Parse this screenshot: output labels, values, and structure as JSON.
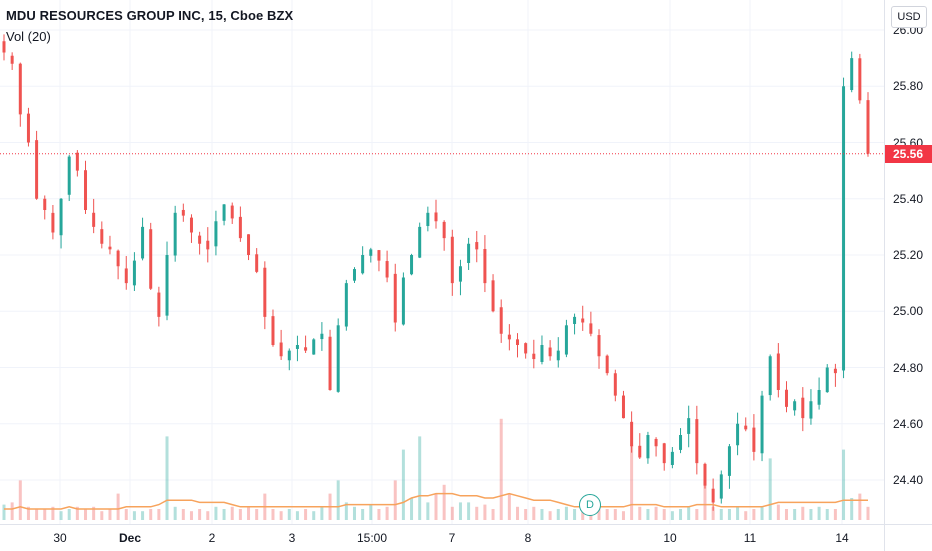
{
  "header": {
    "symbol_title": "MDU RESOURCES GROUP INC, 15, Cboe BZX",
    "volume_indicator": "Vol (20)"
  },
  "price_axis": {
    "currency": "USD",
    "ticks": [
      "26.00",
      "25.80",
      "25.60",
      "25.40",
      "25.20",
      "25.00",
      "24.80",
      "24.60",
      "24.40"
    ],
    "last_price_label": "25.56"
  },
  "time_axis": {
    "ticks": [
      "30",
      "Dec",
      "2",
      "3",
      "15:00",
      "7",
      "8",
      "10",
      "11",
      "14"
    ]
  },
  "events": {
    "dividend_label": "D"
  },
  "colors": {
    "up": "#26a69a",
    "down": "#ef5350",
    "volume_ma": "#f7a35c",
    "last_price_line": "#f23645",
    "grid": "#f0f3fa"
  },
  "chart_data": {
    "type": "candlestick",
    "title": "MDU RESOURCES GROUP INC, 15, Cboe BZX",
    "interval": "15",
    "ylim": [
      24.2,
      26.03
    ],
    "last_price": 25.56,
    "x_labels": [
      "30",
      "Dec",
      "2",
      "3",
      "15:00",
      "7",
      "8",
      "10",
      "11",
      "14"
    ],
    "close_path": [
      25.92,
      25.88,
      25.7,
      25.6,
      25.4,
      25.36,
      25.28,
      25.4,
      25.55,
      25.5,
      25.36,
      25.3,
      25.24,
      25.22,
      25.16,
      25.1,
      25.18,
      25.3,
      25.08,
      24.98,
      25.2,
      25.35,
      25.34,
      25.28,
      25.24,
      25.22,
      25.32,
      25.38,
      25.33,
      25.26,
      25.2,
      25.14,
      24.98,
      24.88,
      24.84,
      24.86,
      24.88,
      24.86,
      24.9,
      24.92,
      24.72,
      24.95,
      25.1,
      25.15,
      25.2,
      25.22,
      25.18,
      25.12,
      24.96,
      25.12,
      25.2,
      25.3,
      25.35,
      25.32,
      25.26,
      25.1,
      25.16,
      25.24,
      25.22,
      25.1,
      25.0,
      24.92,
      24.9,
      24.88,
      24.85,
      24.83,
      24.88,
      24.84,
      24.86,
      24.95,
      24.98,
      24.96,
      24.92,
      24.84,
      24.78,
      24.7,
      24.62,
      24.52,
      24.48,
      24.56,
      24.52,
      24.46,
      24.5,
      24.56,
      24.62,
      24.46,
      24.38,
      24.32,
      24.42,
      24.52,
      24.6,
      24.58,
      24.5,
      24.7,
      24.84,
      24.72,
      24.66,
      24.68,
      24.62,
      24.68,
      24.72,
      24.8,
      24.78,
      25.8,
      25.9,
      25.75,
      25.56
    ],
    "volume_path": [
      0.07,
      0.08,
      0.18,
      0.06,
      0.05,
      0.05,
      0.06,
      0.04,
      0.05,
      0.06,
      0.05,
      0.06,
      0.04,
      0.05,
      0.12,
      0.05,
      0.04,
      0.04,
      0.05,
      0.05,
      0.38,
      0.06,
      0.05,
      0.04,
      0.05,
      0.04,
      0.06,
      0.05,
      0.06,
      0.05,
      0.06,
      0.05,
      0.12,
      0.05,
      0.04,
      0.05,
      0.04,
      0.05,
      0.04,
      0.06,
      0.12,
      0.18,
      0.08,
      0.06,
      0.05,
      0.07,
      0.05,
      0.06,
      0.18,
      0.32,
      0.1,
      0.38,
      0.08,
      0.12,
      0.16,
      0.06,
      0.08,
      0.08,
      0.06,
      0.07,
      0.05,
      0.46,
      0.12,
      0.06,
      0.05,
      0.06,
      0.05,
      0.04,
      0.05,
      0.06,
      0.05,
      0.04,
      0.05,
      0.06,
      0.05,
      0.05,
      0.04,
      0.34,
      0.06,
      0.05,
      0.06,
      0.05,
      0.04,
      0.05,
      0.06,
      0.05,
      0.18,
      0.06,
      0.05,
      0.05,
      0.06,
      0.04,
      0.05,
      0.06,
      0.28,
      0.07,
      0.05,
      0.05,
      0.06,
      0.05,
      0.06,
      0.05,
      0.05,
      0.32,
      0.1,
      0.12,
      0.06
    ],
    "volume_ma": [
      0.05,
      0.05,
      0.06,
      0.05,
      0.05,
      0.05,
      0.05,
      0.05,
      0.06,
      0.05,
      0.05,
      0.05,
      0.05,
      0.05,
      0.05,
      0.06,
      0.06,
      0.06,
      0.06,
      0.07,
      0.09,
      0.09,
      0.09,
      0.09,
      0.08,
      0.08,
      0.08,
      0.08,
      0.07,
      0.06,
      0.06,
      0.06,
      0.06,
      0.06,
      0.06,
      0.06,
      0.06,
      0.06,
      0.06,
      0.06,
      0.06,
      0.06,
      0.07,
      0.07,
      0.07,
      0.07,
      0.07,
      0.07,
      0.07,
      0.08,
      0.1,
      0.11,
      0.11,
      0.12,
      0.12,
      0.12,
      0.11,
      0.11,
      0.11,
      0.1,
      0.1,
      0.11,
      0.12,
      0.11,
      0.1,
      0.09,
      0.09,
      0.09,
      0.08,
      0.07,
      0.06,
      0.06,
      0.06,
      0.06,
      0.06,
      0.06,
      0.06,
      0.07,
      0.07,
      0.07,
      0.07,
      0.06,
      0.06,
      0.06,
      0.06,
      0.07,
      0.07,
      0.07,
      0.06,
      0.06,
      0.06,
      0.06,
      0.06,
      0.06,
      0.07,
      0.08,
      0.08,
      0.08,
      0.08,
      0.08,
      0.08,
      0.08,
      0.08,
      0.09,
      0.09,
      0.09,
      0.09
    ]
  }
}
